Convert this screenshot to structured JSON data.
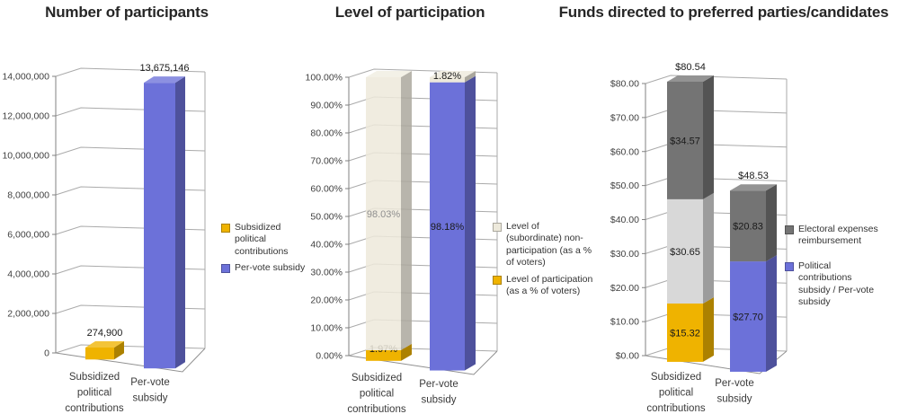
{
  "page": {
    "background": "#FFFFFF"
  },
  "colors": {
    "yellow": "#EFB300",
    "blue": "#6C71D9",
    "beige": "#EDE9DB",
    "light_gray": "#D8D8D8",
    "dark_gray": "#747474",
    "grid": "#AAAAAA",
    "axis_text": "#3F3F3F",
    "title_text": "#262626",
    "label_text": "#1A1A1A"
  },
  "chart_data": [
    {
      "type": "bar",
      "variant": "3d-column",
      "title": "Number of participants",
      "xlabel": "",
      "ylabel": "",
      "ylim": [
        0,
        14000000
      ],
      "grid": true,
      "legend_position": "right",
      "categories": [
        "Subsidized political contributions",
        "Per-vote subsidy"
      ],
      "y_ticks": [
        "0",
        "2,000,000",
        "4,000,000",
        "6,000,000",
        "8,000,000",
        "10,000,000",
        "12,000,000",
        "14,000,000"
      ],
      "bars": [
        {
          "category_lines": [
            "Subsidized",
            "political",
            "contributions"
          ],
          "segments": [
            {
              "value": 274900,
              "color": "yellow"
            }
          ],
          "total_label": "274,900"
        },
        {
          "category_lines": [
            "Per-vote",
            "subsidy"
          ],
          "segments": [
            {
              "value": 13675146,
              "color": "blue"
            }
          ],
          "total_label": "13,675,146"
        }
      ],
      "legend": [
        {
          "label": "Subsidized political contributions",
          "color": "yellow"
        },
        {
          "label": "Per-vote subsidy",
          "color": "blue"
        }
      ]
    },
    {
      "type": "stacked-bar",
      "variant": "3d-column",
      "title": "Level of participation",
      "xlabel": "",
      "ylabel": "",
      "ylim": [
        0,
        100
      ],
      "grid": true,
      "legend_position": "right",
      "categories": [
        "Subsidized political contributions",
        "Per-vote subsidy"
      ],
      "y_ticks": [
        "0.00%",
        "10.00%",
        "20.00%",
        "30.00%",
        "40.00%",
        "50.00%",
        "60.00%",
        "70.00%",
        "80.00%",
        "90.00%",
        "100.00%"
      ],
      "bars": [
        {
          "category_lines": [
            "Subsidized",
            "political",
            "contributions"
          ],
          "segments": [
            {
              "value": 1.97,
              "label": "1.97%",
              "color": "yellow"
            },
            {
              "value": 98.03,
              "label": "98.03%",
              "color": "beige",
              "label_color": "#8F8F8F"
            }
          ]
        },
        {
          "category_lines": [
            "Per-vote",
            "subsidy"
          ],
          "segments": [
            {
              "value": 98.18,
              "label": "98.18%",
              "color": "blue"
            },
            {
              "value": 1.82,
              "label": "1.82%",
              "color": "beige"
            }
          ]
        }
      ],
      "legend": [
        {
          "label": "Level of (subordinate) non-participation (as a % of voters)",
          "color": "beige"
        },
        {
          "label": "Level of participation (as a % of voters)",
          "color": "yellow"
        }
      ]
    },
    {
      "type": "stacked-bar",
      "variant": "3d-column",
      "title": "Funds directed to preferred parties/candidates",
      "xlabel": "",
      "ylabel": "",
      "ylim": [
        0,
        80
      ],
      "grid": true,
      "legend_position": "right",
      "categories": [
        "Subsidized political contributions",
        "Per-vote subsidy"
      ],
      "y_ticks": [
        "$0.00",
        "$10.00",
        "$20.00",
        "$30.00",
        "$40.00",
        "$50.00",
        "$60.00",
        "$70.00",
        "$80.00"
      ],
      "bars": [
        {
          "category_lines": [
            "Subsidized",
            "political",
            "contributions"
          ],
          "segments": [
            {
              "value": 15.32,
              "label": "$15.32",
              "color": "yellow"
            },
            {
              "value": 30.65,
              "label": "$30.65",
              "color": "light_gray"
            },
            {
              "value": 34.57,
              "label": "$34.57",
              "color": "dark_gray"
            }
          ],
          "total_label": "$80.54"
        },
        {
          "category_lines": [
            "Per-vote",
            "subsidy"
          ],
          "segments": [
            {
              "value": 27.7,
              "label": "$27.70",
              "color": "blue"
            },
            {
              "value": 20.83,
              "label": "$20.83",
              "color": "dark_gray"
            }
          ],
          "total_label": "$48.53"
        }
      ],
      "legend": [
        {
          "label": "Electoral expenses reimbursement",
          "color": "dark_gray"
        },
        {
          "label": "Political contributions subsidy / Per-vote subsidy",
          "color": "blue"
        }
      ]
    }
  ]
}
